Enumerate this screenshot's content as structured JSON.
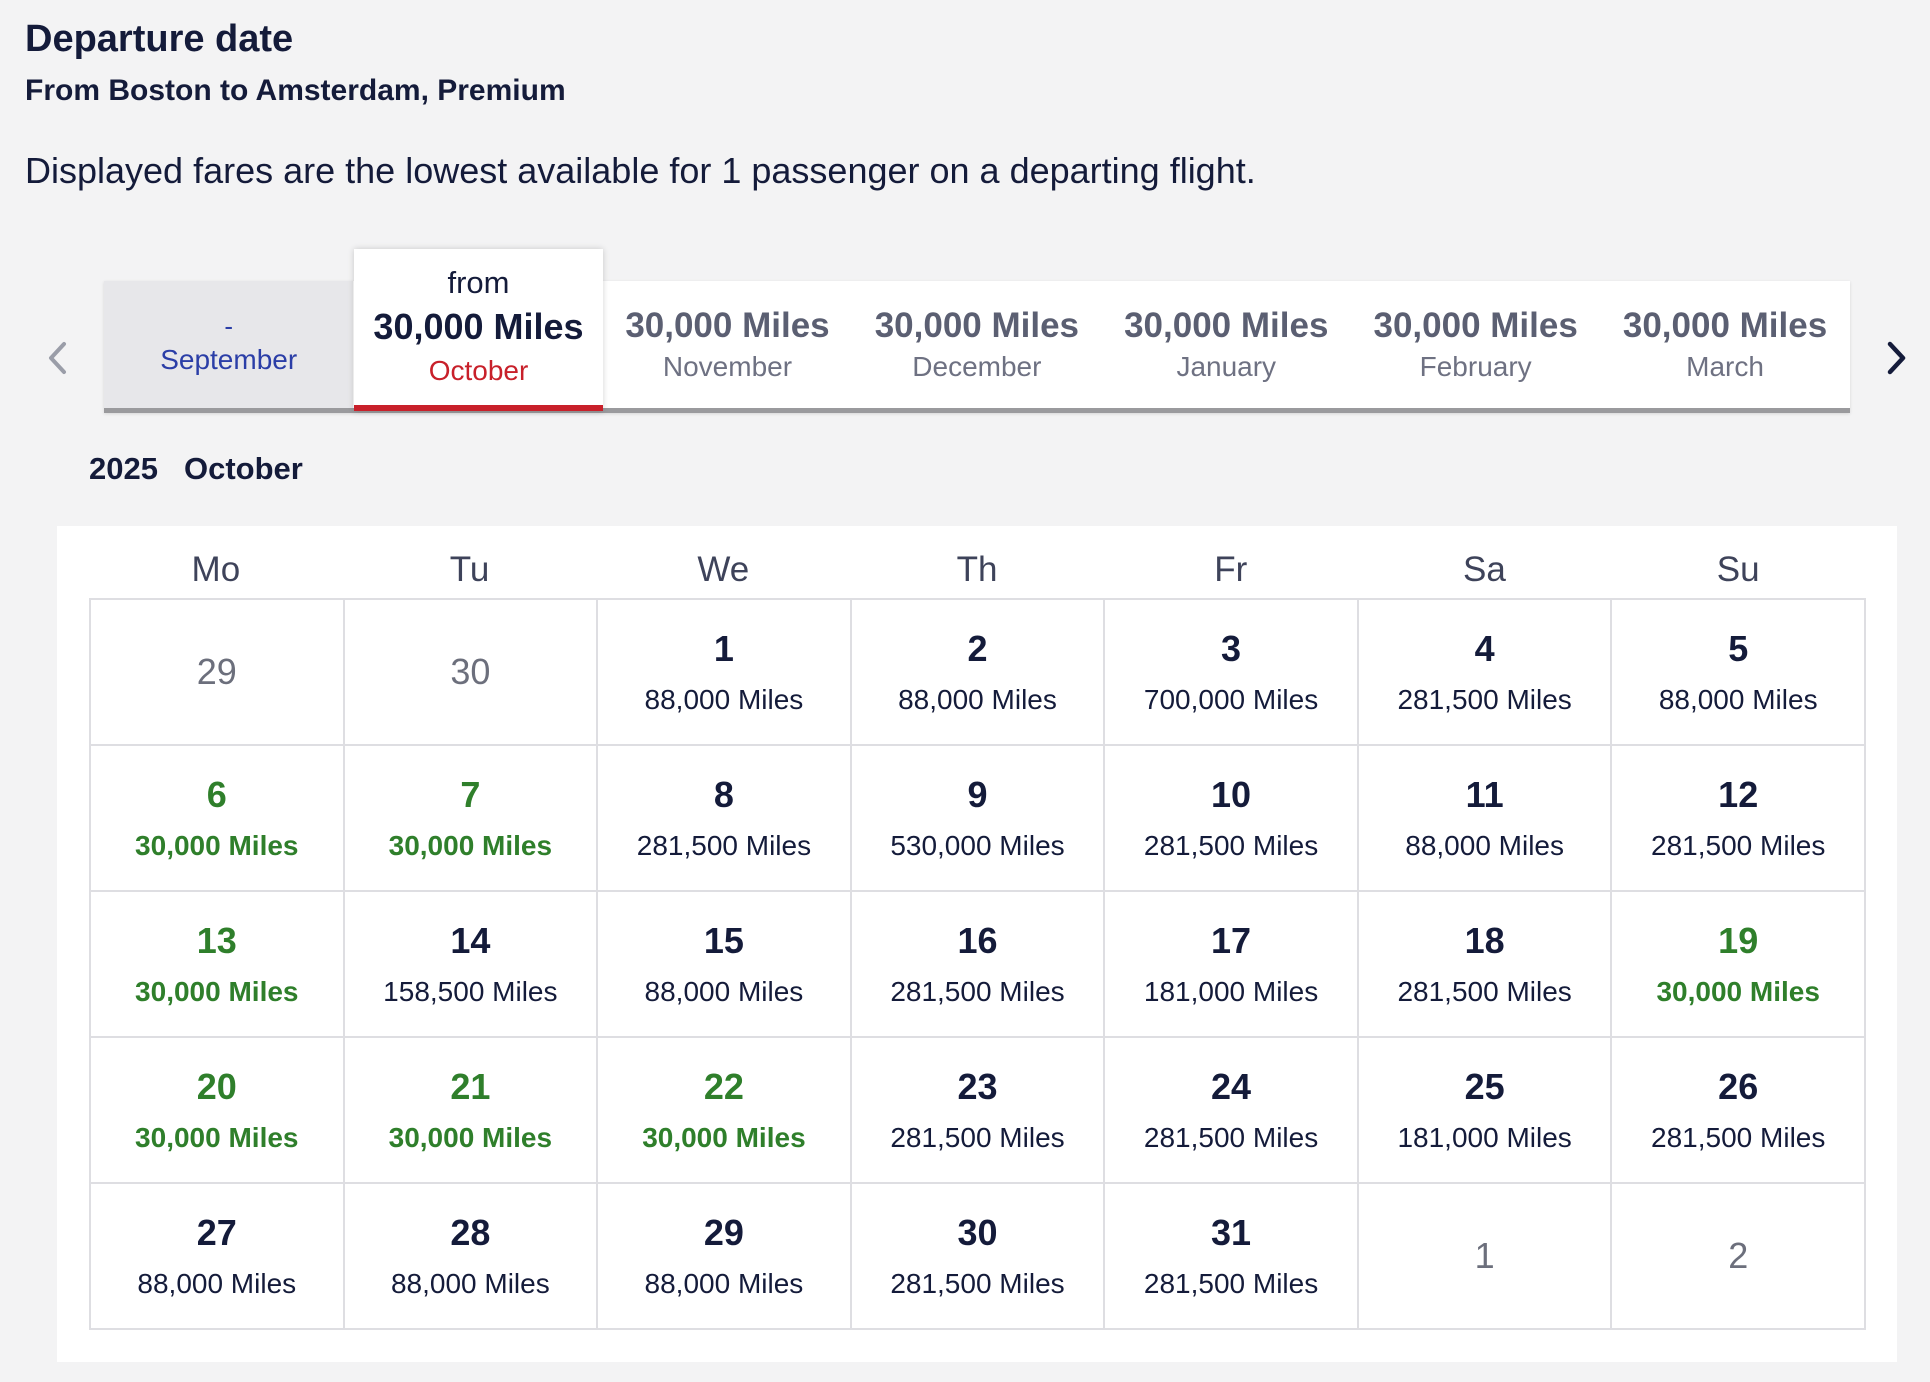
{
  "header": {
    "title": "Departure date",
    "subtitle": "From Boston to Amsterdam, Premium",
    "note": "Displayed fares are the lowest available for 1 passenger on a departing flight."
  },
  "month_strip": {
    "prev_icon": "chevron-left-icon",
    "next_icon": "chevron-right-icon",
    "selected": {
      "prefix": "from",
      "price": "30,000 Miles",
      "month": "October"
    },
    "past": {
      "price": "-",
      "month": "September"
    },
    "months": [
      {
        "price": "30,000 Miles",
        "month": "November"
      },
      {
        "price": "30,000 Miles",
        "month": "December"
      },
      {
        "price": "30,000 Miles",
        "month": "January"
      },
      {
        "price": "30,000 Miles",
        "month": "February"
      },
      {
        "price": "30,000 Miles",
        "month": "March"
      }
    ],
    "colors": {
      "active_underline": "#c8202a",
      "past_text": "#2b3ea7"
    }
  },
  "calendar": {
    "year": "2025",
    "month": "October",
    "weekdays": [
      "Mo",
      "Tu",
      "We",
      "Th",
      "Fr",
      "Sa",
      "Su"
    ],
    "colors": {
      "lowest_fare": "#2f7f2b",
      "outside_month": "#6c6f7c"
    },
    "days": [
      {
        "day": "29",
        "miles": "",
        "state": "outside"
      },
      {
        "day": "30",
        "miles": "",
        "state": "outside"
      },
      {
        "day": "1",
        "miles": "88,000 Miles",
        "state": "normal"
      },
      {
        "day": "2",
        "miles": "88,000 Miles",
        "state": "normal"
      },
      {
        "day": "3",
        "miles": "700,000 Miles",
        "state": "normal"
      },
      {
        "day": "4",
        "miles": "281,500 Miles",
        "state": "normal"
      },
      {
        "day": "5",
        "miles": "88,000 Miles",
        "state": "normal"
      },
      {
        "day": "6",
        "miles": "30,000 Miles",
        "state": "cheap"
      },
      {
        "day": "7",
        "miles": "30,000 Miles",
        "state": "cheap"
      },
      {
        "day": "8",
        "miles": "281,500 Miles",
        "state": "normal"
      },
      {
        "day": "9",
        "miles": "530,000 Miles",
        "state": "normal"
      },
      {
        "day": "10",
        "miles": "281,500 Miles",
        "state": "normal"
      },
      {
        "day": "11",
        "miles": "88,000 Miles",
        "state": "normal"
      },
      {
        "day": "12",
        "miles": "281,500 Miles",
        "state": "normal"
      },
      {
        "day": "13",
        "miles": "30,000 Miles",
        "state": "cheap"
      },
      {
        "day": "14",
        "miles": "158,500 Miles",
        "state": "normal"
      },
      {
        "day": "15",
        "miles": "88,000 Miles",
        "state": "normal"
      },
      {
        "day": "16",
        "miles": "281,500 Miles",
        "state": "normal"
      },
      {
        "day": "17",
        "miles": "181,000 Miles",
        "state": "normal"
      },
      {
        "day": "18",
        "miles": "281,500 Miles",
        "state": "normal"
      },
      {
        "day": "19",
        "miles": "30,000 Miles",
        "state": "cheap"
      },
      {
        "day": "20",
        "miles": "30,000 Miles",
        "state": "cheap"
      },
      {
        "day": "21",
        "miles": "30,000 Miles",
        "state": "cheap"
      },
      {
        "day": "22",
        "miles": "30,000 Miles",
        "state": "cheap"
      },
      {
        "day": "23",
        "miles": "281,500 Miles",
        "state": "normal"
      },
      {
        "day": "24",
        "miles": "281,500 Miles",
        "state": "normal"
      },
      {
        "day": "25",
        "miles": "181,000 Miles",
        "state": "normal"
      },
      {
        "day": "26",
        "miles": "281,500 Miles",
        "state": "normal"
      },
      {
        "day": "27",
        "miles": "88,000 Miles",
        "state": "normal"
      },
      {
        "day": "28",
        "miles": "88,000 Miles",
        "state": "normal"
      },
      {
        "day": "29",
        "miles": "88,000 Miles",
        "state": "normal"
      },
      {
        "day": "30",
        "miles": "281,500 Miles",
        "state": "normal"
      },
      {
        "day": "31",
        "miles": "281,500 Miles",
        "state": "normal"
      },
      {
        "day": "1",
        "miles": "",
        "state": "outside"
      },
      {
        "day": "2",
        "miles": "",
        "state": "outside"
      }
    ]
  }
}
